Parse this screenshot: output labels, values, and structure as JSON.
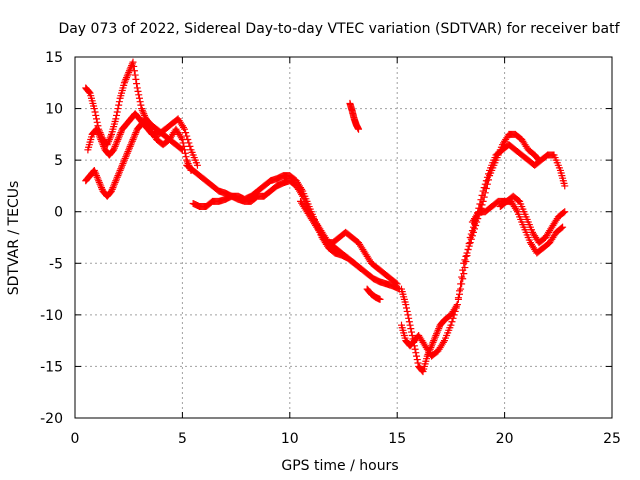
{
  "chart_data": {
    "type": "scatter",
    "title": "Day 073 of 2022, Sidereal Day-to-day VTEC variation (SDTVAR) for receiver batf",
    "xlabel": "GPS time / hours",
    "ylabel": "SDTVAR / TECUs",
    "xlim": [
      0,
      25
    ],
    "ylim": [
      -20,
      15
    ],
    "xticks": [
      "0",
      "5",
      "10",
      "15",
      "20",
      "25"
    ],
    "yticks": [
      "15",
      "10",
      "5",
      "0",
      "-5",
      "-10",
      "-15",
      "-20"
    ],
    "grid": true,
    "marker": "+",
    "color": "#ff0000",
    "series": [
      {
        "x": [
          0.5,
          0.7,
          0.9,
          1.1,
          1.3,
          1.5,
          1.7,
          1.9,
          2.1,
          2.3,
          2.5,
          2.7,
          2.9,
          3.1,
          3.3,
          3.5,
          3.8,
          4.1,
          4.4,
          4.7,
          5.0,
          5.2,
          5.4
        ],
        "y": [
          12,
          11.5,
          10,
          8,
          7,
          6.5,
          7.5,
          9,
          11,
          12.5,
          13.5,
          14.5,
          12,
          10,
          9,
          8,
          7,
          6.5,
          7,
          8,
          7,
          5,
          4
        ]
      },
      {
        "x": [
          0.5,
          0.7,
          0.9,
          1.1,
          1.3,
          1.5,
          1.7,
          1.9,
          2.1,
          2.3,
          2.5,
          2.7,
          2.9,
          3.1,
          3.3,
          3.5,
          3.8,
          4.1,
          4.4,
          4.7,
          5.0
        ],
        "y": [
          3,
          3.5,
          4,
          3,
          2,
          1.5,
          2,
          3,
          4,
          5,
          6,
          7,
          8,
          8.5,
          9,
          8.5,
          8,
          7.5,
          7,
          6.5,
          6
        ]
      },
      {
        "x": [
          0.6,
          0.8,
          1.0,
          1.2,
          1.4,
          1.6,
          1.8,
          2.0,
          2.2,
          2.4,
          2.6,
          2.8,
          3.0,
          3.2,
          3.4,
          3.6,
          3.9,
          4.2,
          4.5,
          4.8,
          5.1,
          5.4,
          5.7
        ],
        "y": [
          6,
          7.5,
          8,
          7,
          6,
          5.5,
          6,
          7,
          8,
          8.5,
          9,
          9.5,
          9,
          8.5,
          8,
          7.5,
          7.5,
          8,
          8.5,
          9,
          8,
          6,
          4.5
        ]
      },
      {
        "x": [
          5.2,
          5.5,
          5.8,
          6.1,
          6.4,
          6.7,
          7.0,
          7.3,
          7.6,
          7.9,
          8.2,
          8.5,
          8.8,
          9.1,
          9.4,
          9.7,
          10.0,
          10.3,
          10.6,
          10.9,
          11.2,
          11.5,
          11.8,
          12.1,
          12.4,
          12.7,
          13.0,
          13.3
        ],
        "y": [
          4.5,
          4,
          3.5,
          3,
          2.5,
          2,
          1.8,
          1.5,
          1.5,
          1.2,
          1.5,
          2,
          2.5,
          3,
          3.2,
          3.5,
          3.5,
          3,
          2,
          0.5,
          -1,
          -2,
          -3,
          -3.5,
          -4,
          -4.5,
          -5,
          -5.5
        ]
      },
      {
        "x": [
          5.5,
          5.8,
          6.1,
          6.4,
          6.7,
          7.0,
          7.3,
          7.6,
          7.9,
          8.2,
          8.5,
          8.8,
          9.1,
          9.4,
          9.7,
          10.0,
          10.3,
          10.6,
          10.9,
          11.2,
          11.5,
          11.8,
          12.1,
          12.4,
          12.7,
          13.0,
          13.3,
          13.6,
          13.9,
          14.2,
          14.5,
          14.8,
          15.1
        ],
        "y": [
          0.8,
          0.5,
          0.5,
          1,
          1,
          1.2,
          1.5,
          1.2,
          1,
          1,
          1.5,
          1.5,
          2,
          2.5,
          2.8,
          3,
          2.5,
          1.5,
          0,
          -1,
          -2.5,
          -3.5,
          -4,
          -4.2,
          -4.5,
          -5,
          -5.5,
          -6,
          -6.5,
          -6.8,
          -7,
          -7.2,
          -7.5
        ]
      },
      {
        "x": [
          10.5,
          10.8,
          11.1,
          11.4,
          11.7,
          12.0,
          12.3,
          12.6,
          12.9,
          13.2,
          13.5,
          13.8,
          14.1,
          14.4,
          14.7,
          15.0
        ],
        "y": [
          1,
          0,
          -1,
          -2,
          -3,
          -3,
          -2.5,
          -2,
          -2.5,
          -3,
          -4,
          -5,
          -5.5,
          -6,
          -6.5,
          -7
        ]
      },
      {
        "x": [
          12.8,
          12.9,
          13.0,
          13.1,
          13.2
        ],
        "y": [
          10.5,
          9.8,
          9,
          8.4,
          8
        ]
      },
      {
        "x": [
          13.6,
          13.8,
          14.0,
          14.2
        ],
        "y": [
          -7.5,
          -8,
          -8.3,
          -8.5
        ]
      },
      {
        "x": [
          15.2,
          15.4,
          15.6,
          15.8,
          16.0,
          16.2,
          16.4,
          16.6,
          16.8,
          17.0,
          17.2,
          17.5,
          17.8,
          18.1,
          18.4,
          18.7,
          19.0,
          19.3,
          19.6,
          19.9,
          20.2,
          20.5,
          20.8,
          21.1,
          21.4,
          21.6
        ],
        "y": [
          -7.5,
          -9,
          -11,
          -13,
          -15,
          -15.5,
          -14,
          -13,
          -12,
          -11,
          -10.5,
          -10,
          -9,
          -5,
          -3,
          -1,
          1,
          3.5,
          5,
          6.5,
          7.5,
          7.5,
          7,
          6,
          5.5,
          5
        ]
      },
      {
        "x": [
          15.2,
          15.4,
          15.6,
          15.8,
          16.0,
          16.3,
          16.6,
          16.9,
          17.2,
          17.5,
          17.8,
          18.1,
          18.4,
          18.7,
          19.0,
          19.3,
          19.6,
          19.9,
          20.2,
          20.5,
          20.8,
          21.1,
          21.4,
          21.7,
          22.0,
          22.3,
          22.6,
          22.8
        ],
        "y": [
          -11,
          -12.5,
          -13,
          -12.5,
          -12,
          -13,
          -14,
          -13.5,
          -12.5,
          -11,
          -9,
          -6,
          -2.5,
          -0.5,
          2,
          4,
          5.5,
          6,
          6.5,
          6,
          5.5,
          5,
          4.5,
          5,
          5.5,
          5.5,
          4,
          2.5
        ]
      },
      {
        "x": [
          18.5,
          18.8,
          19.1,
          19.4,
          19.7,
          20.0,
          20.3,
          20.6,
          20.9,
          21.2,
          21.5,
          21.8,
          22.1,
          22.4,
          22.7
        ],
        "y": [
          -1,
          0,
          0,
          0.5,
          1,
          1,
          1,
          0,
          -1.5,
          -3,
          -4,
          -3.5,
          -3,
          -2,
          -1.5
        ]
      },
      {
        "x": [
          19.8,
          20.1,
          20.4,
          20.7,
          21.0,
          21.3,
          21.6,
          21.9,
          22.2,
          22.5,
          22.8
        ],
        "y": [
          0.5,
          1,
          1.5,
          1,
          -0.5,
          -2,
          -3,
          -2.5,
          -1.5,
          -0.5,
          0
        ]
      }
    ]
  }
}
